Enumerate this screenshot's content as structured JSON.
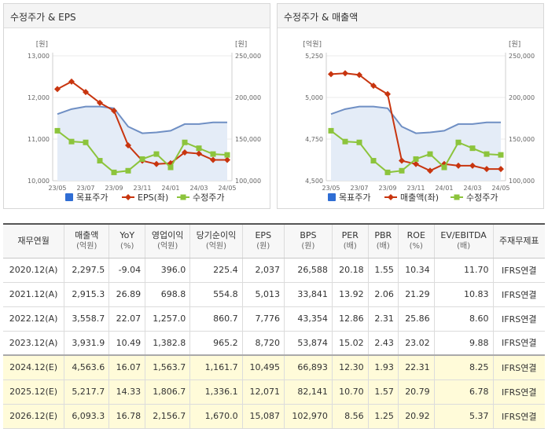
{
  "left_panel": {
    "title": "수정주가 & EPS"
  },
  "right_panel": {
    "title": "수정주가 & 매출액"
  },
  "colors": {
    "target_price": "#6f8fc4",
    "target_fill": "#e4ecf7",
    "series_line": "#c8350f",
    "adjusted_price": "#8cc43c",
    "legend_target": "#2f6dd4"
  },
  "chart_data": [
    {
      "type": "line",
      "title": "수정주가 & EPS",
      "left_unit": "[원]",
      "right_unit": "[원]",
      "categories": [
        "23/05",
        "23/06",
        "23/07",
        "23/08",
        "23/09",
        "23/10",
        "23/11",
        "23/12",
        "24/01",
        "24/02",
        "24/03",
        "24/04",
        "24/05"
      ],
      "x_tick_labels": [
        "23/05",
        "23/07",
        "23/09",
        "23/11",
        "24/01",
        "24/03",
        "24/05"
      ],
      "left_axis": {
        "ylim": [
          10000,
          13000
        ],
        "ticks": [
          "10,000",
          "11,000",
          "12,000",
          "13,000"
        ],
        "tick_values": [
          10000,
          11000,
          12000,
          13000
        ]
      },
      "right_axis": {
        "ylim": [
          100000,
          250000
        ],
        "ticks": [
          "100,000",
          "150,000",
          "200,000",
          "250,000"
        ],
        "tick_values": [
          100000,
          150000,
          200000,
          250000
        ]
      },
      "series": [
        {
          "name": "목표주가",
          "axis": "right",
          "style": "area",
          "values": [
            180000,
            186000,
            189000,
            189000,
            187000,
            165000,
            157000,
            158000,
            160000,
            168000,
            168000,
            170000,
            170000
          ]
        },
        {
          "name": "EPS(좌)",
          "axis": "left",
          "style": "line-marker",
          "values": [
            12200,
            12380,
            12130,
            11870,
            11680,
            10850,
            10480,
            10400,
            10420,
            10680,
            10650,
            10500,
            10500
          ]
        },
        {
          "name": "수정주가",
          "axis": "right",
          "style": "marker",
          "values": [
            160000,
            147000,
            146000,
            124000,
            110000,
            112000,
            126000,
            132000,
            116000,
            146000,
            139000,
            132000,
            131000
          ]
        }
      ],
      "legend": [
        "목표주가",
        "EPS(좌)",
        "수정주가"
      ]
    },
    {
      "type": "line",
      "title": "수정주가 & 매출액",
      "left_unit": "[억원]",
      "right_unit": "[원]",
      "categories": [
        "23/05",
        "23/06",
        "23/07",
        "23/08",
        "23/09",
        "23/10",
        "23/11",
        "23/12",
        "24/01",
        "24/02",
        "24/03",
        "24/04",
        "24/05"
      ],
      "x_tick_labels": [
        "23/05",
        "23/07",
        "23/09",
        "23/11",
        "24/01",
        "24/03",
        "24/05"
      ],
      "left_axis": {
        "ylim": [
          4500,
          5250
        ],
        "ticks": [
          "4,500",
          "4,750",
          "5,000",
          "5,250"
        ],
        "tick_values": [
          4500,
          4750,
          5000,
          5250
        ]
      },
      "right_axis": {
        "ylim": [
          100000,
          250000
        ],
        "ticks": [
          "100,000",
          "150,000",
          "200,000",
          "250,000"
        ],
        "tick_values": [
          100000,
          150000,
          200000,
          250000
        ]
      },
      "series": [
        {
          "name": "목표주가",
          "axis": "right",
          "style": "area",
          "values": [
            180000,
            186000,
            189000,
            189000,
            187000,
            165000,
            157000,
            158000,
            160000,
            168000,
            168000,
            170000,
            170000
          ]
        },
        {
          "name": "매출액(좌)",
          "axis": "left",
          "style": "line-marker",
          "values": [
            5140,
            5145,
            5135,
            5070,
            5020,
            4620,
            4600,
            4560,
            4600,
            4590,
            4590,
            4570,
            4570
          ]
        },
        {
          "name": "수정주가",
          "axis": "right",
          "style": "marker",
          "values": [
            160000,
            147000,
            146000,
            124000,
            110000,
            112000,
            126000,
            132000,
            116000,
            146000,
            139000,
            132000,
            131000
          ]
        }
      ],
      "legend": [
        "목표주가",
        "매출액(좌)",
        "수정주가"
      ]
    }
  ],
  "table": {
    "headers": [
      {
        "main": "재무연월",
        "sub": ""
      },
      {
        "main": "매출액",
        "sub": "(억원)"
      },
      {
        "main": "YoY",
        "sub": "(%)"
      },
      {
        "main": "영업이익",
        "sub": "(억원)"
      },
      {
        "main": "당기순이익",
        "sub": "(억원)"
      },
      {
        "main": "EPS",
        "sub": "(원)"
      },
      {
        "main": "BPS",
        "sub": "(원)"
      },
      {
        "main": "PER",
        "sub": "(배)"
      },
      {
        "main": "PBR",
        "sub": "(배)"
      },
      {
        "main": "ROE",
        "sub": "(%)"
      },
      {
        "main": "EV/EBITDA",
        "sub": "(배)"
      },
      {
        "main": "주재무제표",
        "sub": ""
      }
    ],
    "rows": [
      {
        "estimate": false,
        "cells": [
          "2020.12(A)",
          "2,297.5",
          "-9.04",
          "396.0",
          "225.4",
          "2,037",
          "26,588",
          "20.18",
          "1.55",
          "10.34",
          "11.70",
          "IFRS연결"
        ]
      },
      {
        "estimate": false,
        "cells": [
          "2021.12(A)",
          "2,915.3",
          "26.89",
          "698.8",
          "554.8",
          "5,013",
          "33,841",
          "13.92",
          "2.06",
          "21.29",
          "10.83",
          "IFRS연결"
        ]
      },
      {
        "estimate": false,
        "cells": [
          "2022.12(A)",
          "3,558.7",
          "22.07",
          "1,257.0",
          "860.7",
          "7,776",
          "43,354",
          "12.86",
          "2.31",
          "25.86",
          "8.60",
          "IFRS연결"
        ]
      },
      {
        "estimate": false,
        "cells": [
          "2023.12(A)",
          "3,931.9",
          "10.49",
          "1,382.8",
          "965.2",
          "8,720",
          "53,874",
          "15.02",
          "2.43",
          "23.02",
          "9.88",
          "IFRS연결"
        ]
      },
      {
        "estimate": true,
        "cells": [
          "2024.12(E)",
          "4,563.6",
          "16.07",
          "1,563.7",
          "1,161.7",
          "10,495",
          "66,893",
          "12.30",
          "1.93",
          "22.31",
          "8.25",
          "IFRS연결"
        ]
      },
      {
        "estimate": true,
        "cells": [
          "2025.12(E)",
          "5,217.7",
          "14.33",
          "1,806.7",
          "1,336.1",
          "12,071",
          "82,141",
          "10.70",
          "1.57",
          "20.79",
          "6.78",
          "IFRS연결"
        ]
      },
      {
        "estimate": true,
        "cells": [
          "2026.12(E)",
          "6,093.3",
          "16.78",
          "2,156.7",
          "1,670.0",
          "15,087",
          "102,970",
          "8.56",
          "1.25",
          "20.92",
          "5.37",
          "IFRS연결"
        ]
      }
    ]
  }
}
